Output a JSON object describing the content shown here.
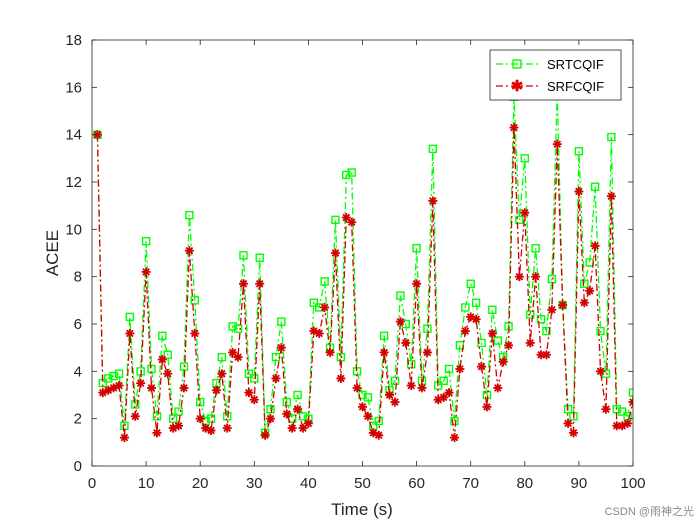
{
  "chart_data": {
    "type": "line",
    "title": "",
    "xlabel": "Time (s)",
    "ylabel": "ACEE",
    "xlim": [
      0,
      100
    ],
    "ylim": [
      0,
      18
    ],
    "xticks": [
      0,
      10,
      20,
      30,
      40,
      50,
      60,
      70,
      80,
      90,
      100
    ],
    "yticks": [
      0,
      2,
      4,
      6,
      8,
      10,
      12,
      14,
      16,
      18
    ],
    "grid": false,
    "legend_position": "top-right",
    "series": [
      {
        "name": "SRTCQIF",
        "color": "#00ff00",
        "marker": "square",
        "linestyle": "dash-dot",
        "x": [
          1,
          2,
          3,
          4,
          5,
          6,
          7,
          8,
          9,
          10,
          11,
          12,
          13,
          14,
          15,
          16,
          17,
          18,
          19,
          20,
          21,
          22,
          23,
          24,
          25,
          26,
          27,
          28,
          29,
          30,
          31,
          32,
          33,
          34,
          35,
          36,
          37,
          38,
          39,
          40,
          41,
          42,
          43,
          44,
          45,
          46,
          47,
          48,
          49,
          50,
          51,
          52,
          53,
          54,
          55,
          56,
          57,
          58,
          59,
          60,
          61,
          62,
          63,
          64,
          65,
          66,
          67,
          68,
          69,
          70,
          71,
          72,
          73,
          74,
          75,
          76,
          77,
          78,
          79,
          80,
          81,
          82,
          83,
          84,
          85,
          86,
          87,
          88,
          89,
          90,
          91,
          92,
          93,
          94,
          95,
          96,
          97,
          98,
          99,
          100
        ],
        "values": [
          14.0,
          3.5,
          3.7,
          3.8,
          3.9,
          1.7,
          6.3,
          2.6,
          4.0,
          9.5,
          4.1,
          2.1,
          5.5,
          4.7,
          2.0,
          2.3,
          4.2,
          10.6,
          7.0,
          2.7,
          1.9,
          2.0,
          3.5,
          4.6,
          2.1,
          5.9,
          5.8,
          8.9,
          3.9,
          3.7,
          8.8,
          1.4,
          2.4,
          4.6,
          6.1,
          2.7,
          2.0,
          3.0,
          2.1,
          2.0,
          6.9,
          6.7,
          7.8,
          5.0,
          10.4,
          4.6,
          12.3,
          12.4,
          4.0,
          3.0,
          2.9,
          1.7,
          1.9,
          5.5,
          3.2,
          3.6,
          7.2,
          6.0,
          4.3,
          9.2,
          3.6,
          5.8,
          13.4,
          3.4,
          3.6,
          4.1,
          1.9,
          5.1,
          6.7,
          7.7,
          6.9,
          5.2,
          3.0,
          6.6,
          5.3,
          4.6,
          5.9,
          15.6,
          10.4,
          13.0,
          6.4,
          9.2,
          6.2,
          5.7,
          7.9,
          15.8,
          6.8,
          2.4,
          2.1,
          13.3,
          7.7,
          8.6,
          11.8,
          5.7,
          3.9,
          13.9,
          2.4,
          2.3,
          2.1,
          3.1
        ]
      },
      {
        "name": "SRFCQIF",
        "color": "#d40000",
        "marker": "star",
        "linestyle": "dash-dot",
        "x": [
          1,
          2,
          3,
          4,
          5,
          6,
          7,
          8,
          9,
          10,
          11,
          12,
          13,
          14,
          15,
          16,
          17,
          18,
          19,
          20,
          21,
          22,
          23,
          24,
          25,
          26,
          27,
          28,
          29,
          30,
          31,
          32,
          33,
          34,
          35,
          36,
          37,
          38,
          39,
          40,
          41,
          42,
          43,
          44,
          45,
          46,
          47,
          48,
          49,
          50,
          51,
          52,
          53,
          54,
          55,
          56,
          57,
          58,
          59,
          60,
          61,
          62,
          63,
          64,
          65,
          66,
          67,
          68,
          69,
          70,
          71,
          72,
          73,
          74,
          75,
          76,
          77,
          78,
          79,
          80,
          81,
          82,
          83,
          84,
          85,
          86,
          87,
          88,
          89,
          90,
          91,
          92,
          93,
          94,
          95,
          96,
          97,
          98,
          99,
          100
        ],
        "values": [
          14.0,
          3.1,
          3.2,
          3.3,
          3.4,
          1.2,
          5.6,
          2.1,
          3.5,
          8.2,
          3.3,
          1.4,
          4.5,
          3.9,
          1.6,
          1.7,
          3.3,
          9.1,
          5.6,
          2.0,
          1.6,
          1.5,
          3.2,
          3.9,
          1.6,
          4.8,
          4.6,
          7.7,
          3.1,
          2.8,
          7.7,
          1.3,
          2.0,
          3.7,
          5.0,
          2.2,
          1.6,
          2.4,
          1.6,
          1.8,
          5.7,
          5.6,
          6.7,
          4.8,
          9.0,
          3.7,
          10.5,
          10.3,
          3.3,
          2.5,
          2.1,
          1.4,
          1.3,
          4.8,
          3.0,
          2.7,
          6.1,
          5.2,
          3.4,
          7.7,
          3.3,
          4.8,
          11.2,
          2.8,
          2.9,
          3.1,
          1.2,
          4.1,
          5.7,
          6.3,
          6.2,
          4.2,
          2.5,
          5.6,
          3.3,
          4.4,
          5.1,
          14.3,
          8.0,
          10.7,
          5.2,
          8.0,
          4.7,
          4.7,
          6.6,
          13.6,
          6.8,
          1.8,
          1.4,
          11.6,
          6.9,
          7.4,
          9.3,
          4.0,
          2.4,
          11.4,
          1.7,
          1.7,
          1.8,
          2.7
        ]
      }
    ]
  },
  "watermark": "CSDN @雨神之光"
}
